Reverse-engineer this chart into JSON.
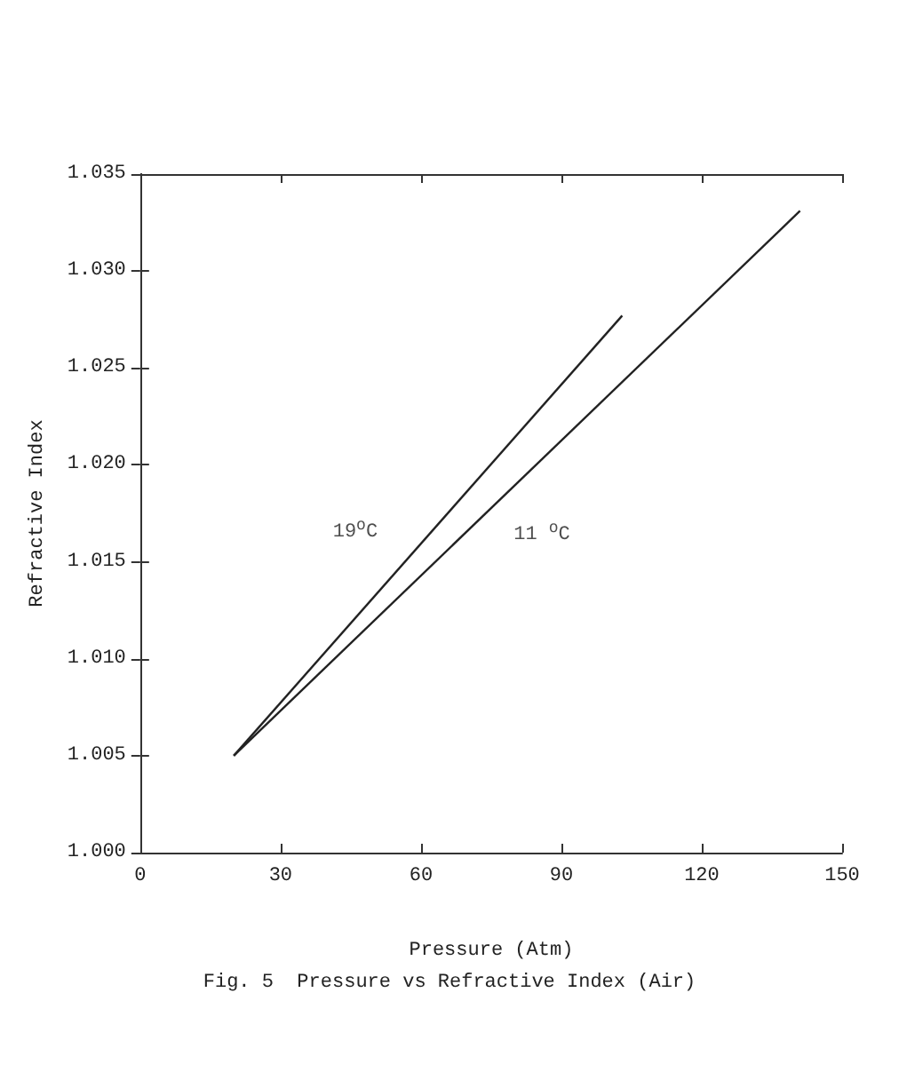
{
  "chart_data": {
    "type": "line",
    "title": "Fig. 5  Pressure vs Refractive Index (Air)",
    "xlabel": "Pressure (Atm)",
    "ylabel": "Refractive Index",
    "series": [
      {
        "name": "19$^{o}$C",
        "color": "#222222",
        "x": [
          20,
          103
        ],
        "values": [
          1.005,
          1.0277
        ]
      },
      {
        "name": "11 $^{o}$C",
        "color": "#222222",
        "x": [
          20,
          141
        ],
        "values": [
          1.005,
          1.0331
        ]
      }
    ],
    "xlim": [
      0,
      150
    ],
    "xticks": [
      0,
      30,
      60,
      90,
      120,
      150
    ],
    "ylim": [
      1.0,
      1.035
    ],
    "yticks": [
      {
        "value": 1.0,
        "label": "1.000"
      },
      {
        "value": 1.005,
        "label": "1.005"
      },
      {
        "value": 1.01,
        "label": "1.010"
      },
      {
        "value": 1.015,
        "label": "1.015"
      },
      {
        "value": 1.02,
        "label": "1.020"
      },
      {
        "value": 1.025,
        "label": "1.025"
      },
      {
        "value": 1.03,
        "label": "1.030"
      },
      {
        "value": 1.035,
        "label": "1.035"
      }
    ],
    "grid": false,
    "marker": "none",
    "line_style": "solid"
  }
}
